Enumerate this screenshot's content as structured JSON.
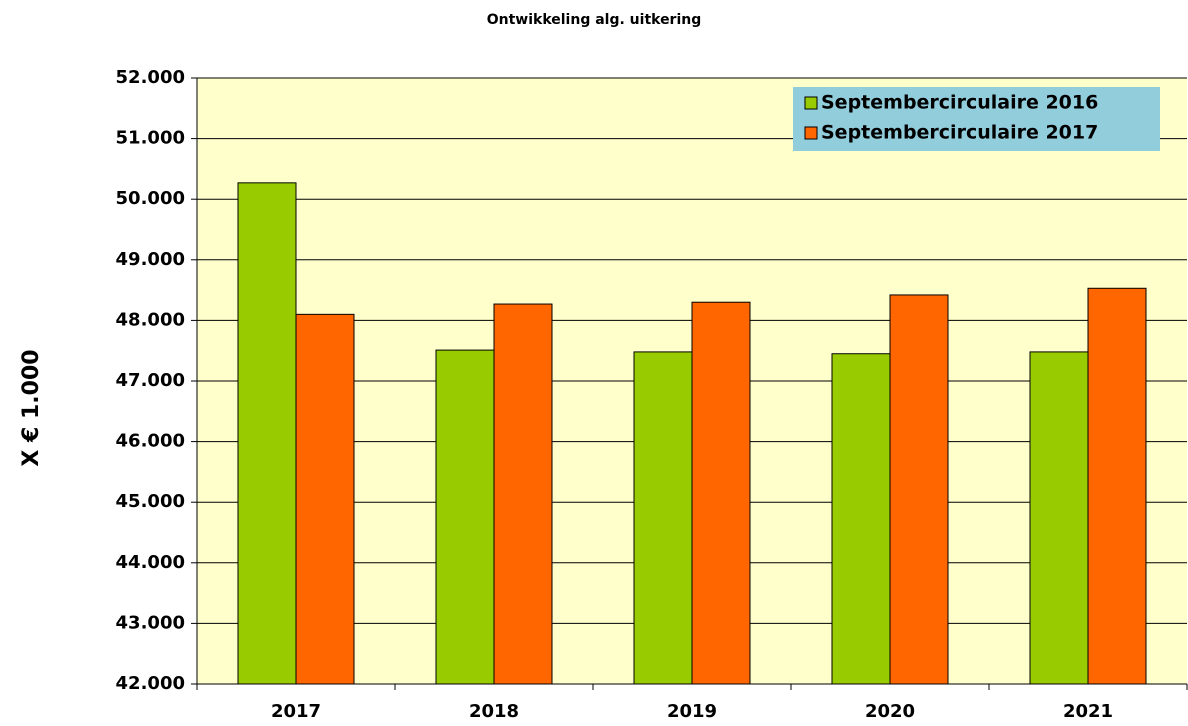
{
  "chart_data": {
    "type": "bar",
    "title": "Ontwikkeling alg. uitkering",
    "y_label": "X € 1.000",
    "categories": [
      "2017",
      "2018",
      "2019",
      "2020",
      "2021"
    ],
    "series": [
      {
        "name": "Septembercirculaire 2016",
        "color": "#99cc00",
        "values": [
          50270,
          47510,
          47480,
          47450,
          47480
        ]
      },
      {
        "name": "Septembercirculaire 2017",
        "color": "#ff6600",
        "values": [
          48100,
          48270,
          48300,
          48420,
          48530
        ]
      }
    ],
    "ylim": [
      42000,
      52000
    ],
    "yticks": [
      {
        "value": 42000,
        "label": "42.000"
      },
      {
        "value": 43000,
        "label": "43.000"
      },
      {
        "value": 44000,
        "label": "44.000"
      },
      {
        "value": 45000,
        "label": "45.000"
      },
      {
        "value": 46000,
        "label": "46.000"
      },
      {
        "value": 47000,
        "label": "47.000"
      },
      {
        "value": 48000,
        "label": "48.000"
      },
      {
        "value": 49000,
        "label": "49.000"
      },
      {
        "value": 50000,
        "label": "50.000"
      },
      {
        "value": 51000,
        "label": "51.000"
      },
      {
        "value": 52000,
        "label": "52.000"
      }
    ],
    "grid": true,
    "legend": "upper right",
    "background": "#ffffcc",
    "legend_background": "#92cddc"
  }
}
